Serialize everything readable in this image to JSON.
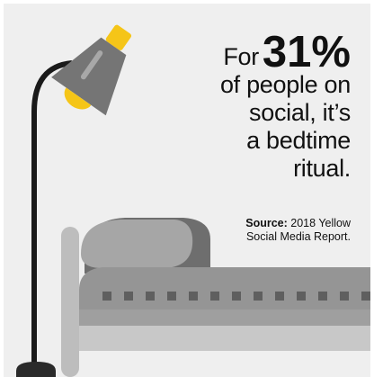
{
  "headline": {
    "prefix": "For",
    "stat": "31%",
    "lines": [
      "of people on",
      "social, it’s",
      "a bedtime",
      "ritual."
    ]
  },
  "source": {
    "label": "Source:",
    "line1": "2018 Yellow",
    "line2": "Social Media Report."
  },
  "colors": {
    "background": "#efefef",
    "lamp_yellow": "#f5c518",
    "lamp_shade": "#757575",
    "pole": "#1a1a1a",
    "bed_grey": "#9a9a9a",
    "headboard": "#bdbdbd"
  },
  "icons": [
    "floor-lamp-icon",
    "bed-icon"
  ]
}
